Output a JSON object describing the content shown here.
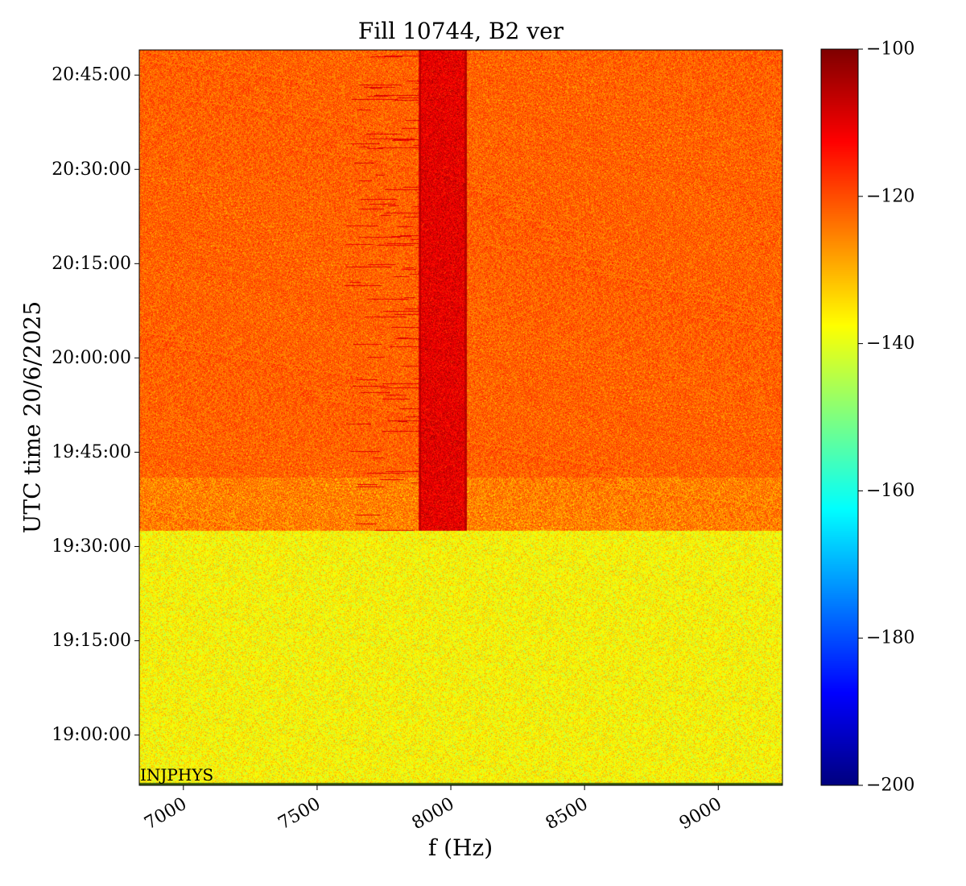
{
  "chart_data": {
    "type": "heatmap",
    "title": "Fill 10744, B2 ver",
    "xlabel": "f (Hz)",
    "ylabel": "UTC time 20/6/2025",
    "x_ticks": [
      "7000",
      "7500",
      "8000",
      "8500",
      "9000"
    ],
    "y_ticks": [
      "19:00:00",
      "19:15:00",
      "19:30:00",
      "19:45:00",
      "20:00:00",
      "20:15:00",
      "20:30:00",
      "20:45:00"
    ],
    "xlim": [
      6835,
      9240
    ],
    "ylim": [
      "18:52:00",
      "20:49:00"
    ],
    "colormap": "jet",
    "colorbar_range": [
      -200,
      -100
    ],
    "colorbar_ticks": [
      "-100",
      "-120",
      "-140",
      "-160",
      "-180",
      "-200"
    ],
    "annotation": "INJPHYS",
    "regions": [
      {
        "t_from": "18:52:00",
        "t_to": "19:32:30",
        "level_db": -137,
        "spread_db": 6
      },
      {
        "t_from": "19:32:30",
        "t_to": "19:41:00",
        "level_db": -125,
        "spread_db": 6
      },
      {
        "t_from": "19:41:00",
        "t_to": "20:49:00",
        "level_db": -122,
        "spread_db": 5
      }
    ],
    "features": [
      {
        "kind": "band",
        "f_from": 7880,
        "f_to": 8060,
        "t_from": "19:32:30",
        "t_to": "20:49:00",
        "level_db": -110
      },
      {
        "kind": "line",
        "f": 7885,
        "t_from": "19:32:30",
        "t_to": "20:49:00",
        "level_db": -106
      },
      {
        "kind": "line",
        "f": 8055,
        "t_from": "19:32:30",
        "t_to": "20:49:00",
        "level_db": -106
      },
      {
        "kind": "streaks",
        "f_from": 7600,
        "f_to": 7900,
        "t_from": "19:32:30",
        "t_to": "20:49:00",
        "level_db": -110
      }
    ]
  },
  "colors": {
    "axis": "#000000",
    "background": "#ffffff"
  }
}
